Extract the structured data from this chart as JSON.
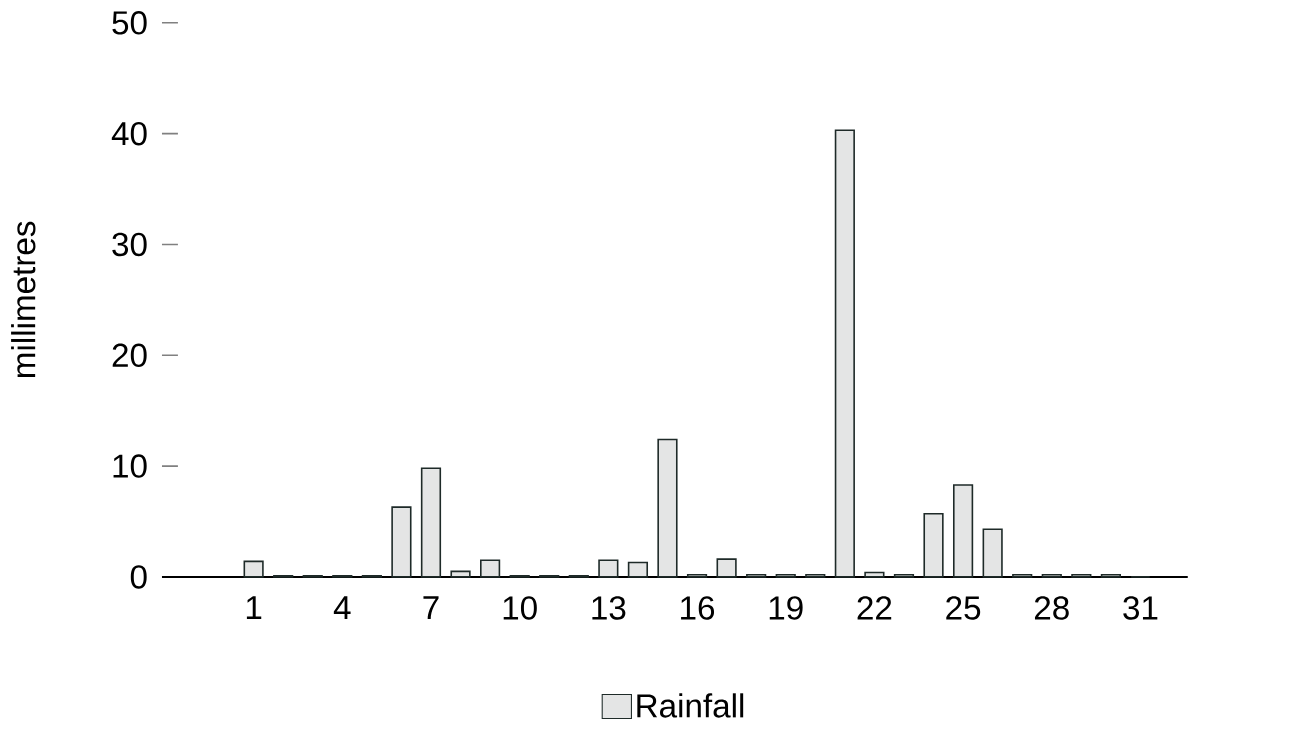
{
  "chart_data": {
    "type": "bar",
    "ylabel": "millimetres",
    "categories": [
      "1",
      null,
      null,
      "4",
      null,
      null,
      "7",
      null,
      null,
      "10",
      null,
      null,
      "13",
      null,
      null,
      "16",
      null,
      null,
      "19",
      null,
      null,
      "22",
      null,
      null,
      "25",
      null,
      null,
      "28",
      null,
      null,
      "31"
    ],
    "series": [
      {
        "name": "Rainfall",
        "color": "#1e2a28",
        "values": [
          1.4,
          0.1,
          0.1,
          0.1,
          0.1,
          6.3,
          9.8,
          0.5,
          1.5,
          0.1,
          0.1,
          0.1,
          1.5,
          1.3,
          12.4,
          0.2,
          1.6,
          0.2,
          0.2,
          0.2,
          40.3,
          0.4,
          0.2,
          5.7,
          8.3,
          4.3,
          0.2,
          0.2,
          0.2,
          0.2,
          0
        ]
      }
    ],
    "ylim": [
      0,
      50
    ],
    "yticks": [
      0,
      10,
      20,
      30,
      40,
      50
    ],
    "legend": "bottom"
  }
}
